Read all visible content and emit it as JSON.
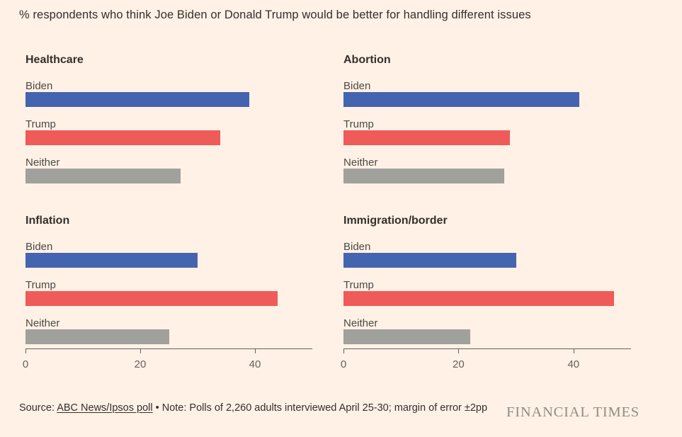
{
  "title": "% respondents who think Joe Biden or Donald Trump would be better for handling different issues",
  "colors": {
    "background": "#FFF1E5",
    "biden": "#4464B0",
    "trump": "#EF5B58",
    "neither": "#A0A09D",
    "text_dark": "#33302E",
    "text_label": "#4D4845",
    "axis": "#66605B",
    "ft_logo": "#8F8D87"
  },
  "chart_data": [
    {
      "type": "bar",
      "orientation": "horizontal",
      "title": "Healthcare",
      "categories": [
        "Biden",
        "Trump",
        "Neither"
      ],
      "values": [
        39,
        34,
        27
      ],
      "xlim": [
        0,
        50
      ],
      "ticks": [
        0,
        20,
        40
      ],
      "grid": false,
      "legend": "none"
    },
    {
      "type": "bar",
      "orientation": "horizontal",
      "title": "Abortion",
      "categories": [
        "Biden",
        "Trump",
        "Neither"
      ],
      "values": [
        41,
        29,
        28
      ],
      "xlim": [
        0,
        50
      ],
      "ticks": [
        0,
        20,
        40
      ],
      "grid": false,
      "legend": "none"
    },
    {
      "type": "bar",
      "orientation": "horizontal",
      "title": "Inflation",
      "categories": [
        "Biden",
        "Trump",
        "Neither"
      ],
      "values": [
        30,
        44,
        25
      ],
      "xlim": [
        0,
        50
      ],
      "ticks": [
        0,
        20,
        40
      ],
      "grid": false,
      "legend": "none"
    },
    {
      "type": "bar",
      "orientation": "horizontal",
      "title": "Immigration/border",
      "categories": [
        "Biden",
        "Trump",
        "Neither"
      ],
      "values": [
        30,
        47,
        22
      ],
      "xlim": [
        0,
        50
      ],
      "ticks": [
        0,
        20,
        40
      ],
      "grid": false,
      "legend": "none"
    }
  ],
  "axis": {
    "max": 50,
    "ticks": [
      0,
      20,
      40
    ],
    "tick_labels": [
      "0",
      "20",
      "40"
    ]
  },
  "footer": {
    "source_prefix": "Source: ",
    "source_link": "ABC News/Ipsos poll",
    "note_after_link": " • Note: Polls of 2,260 adults interviewed April 25-30; margin of error ±2pp",
    "brand": "FINANCIAL TIMES"
  }
}
